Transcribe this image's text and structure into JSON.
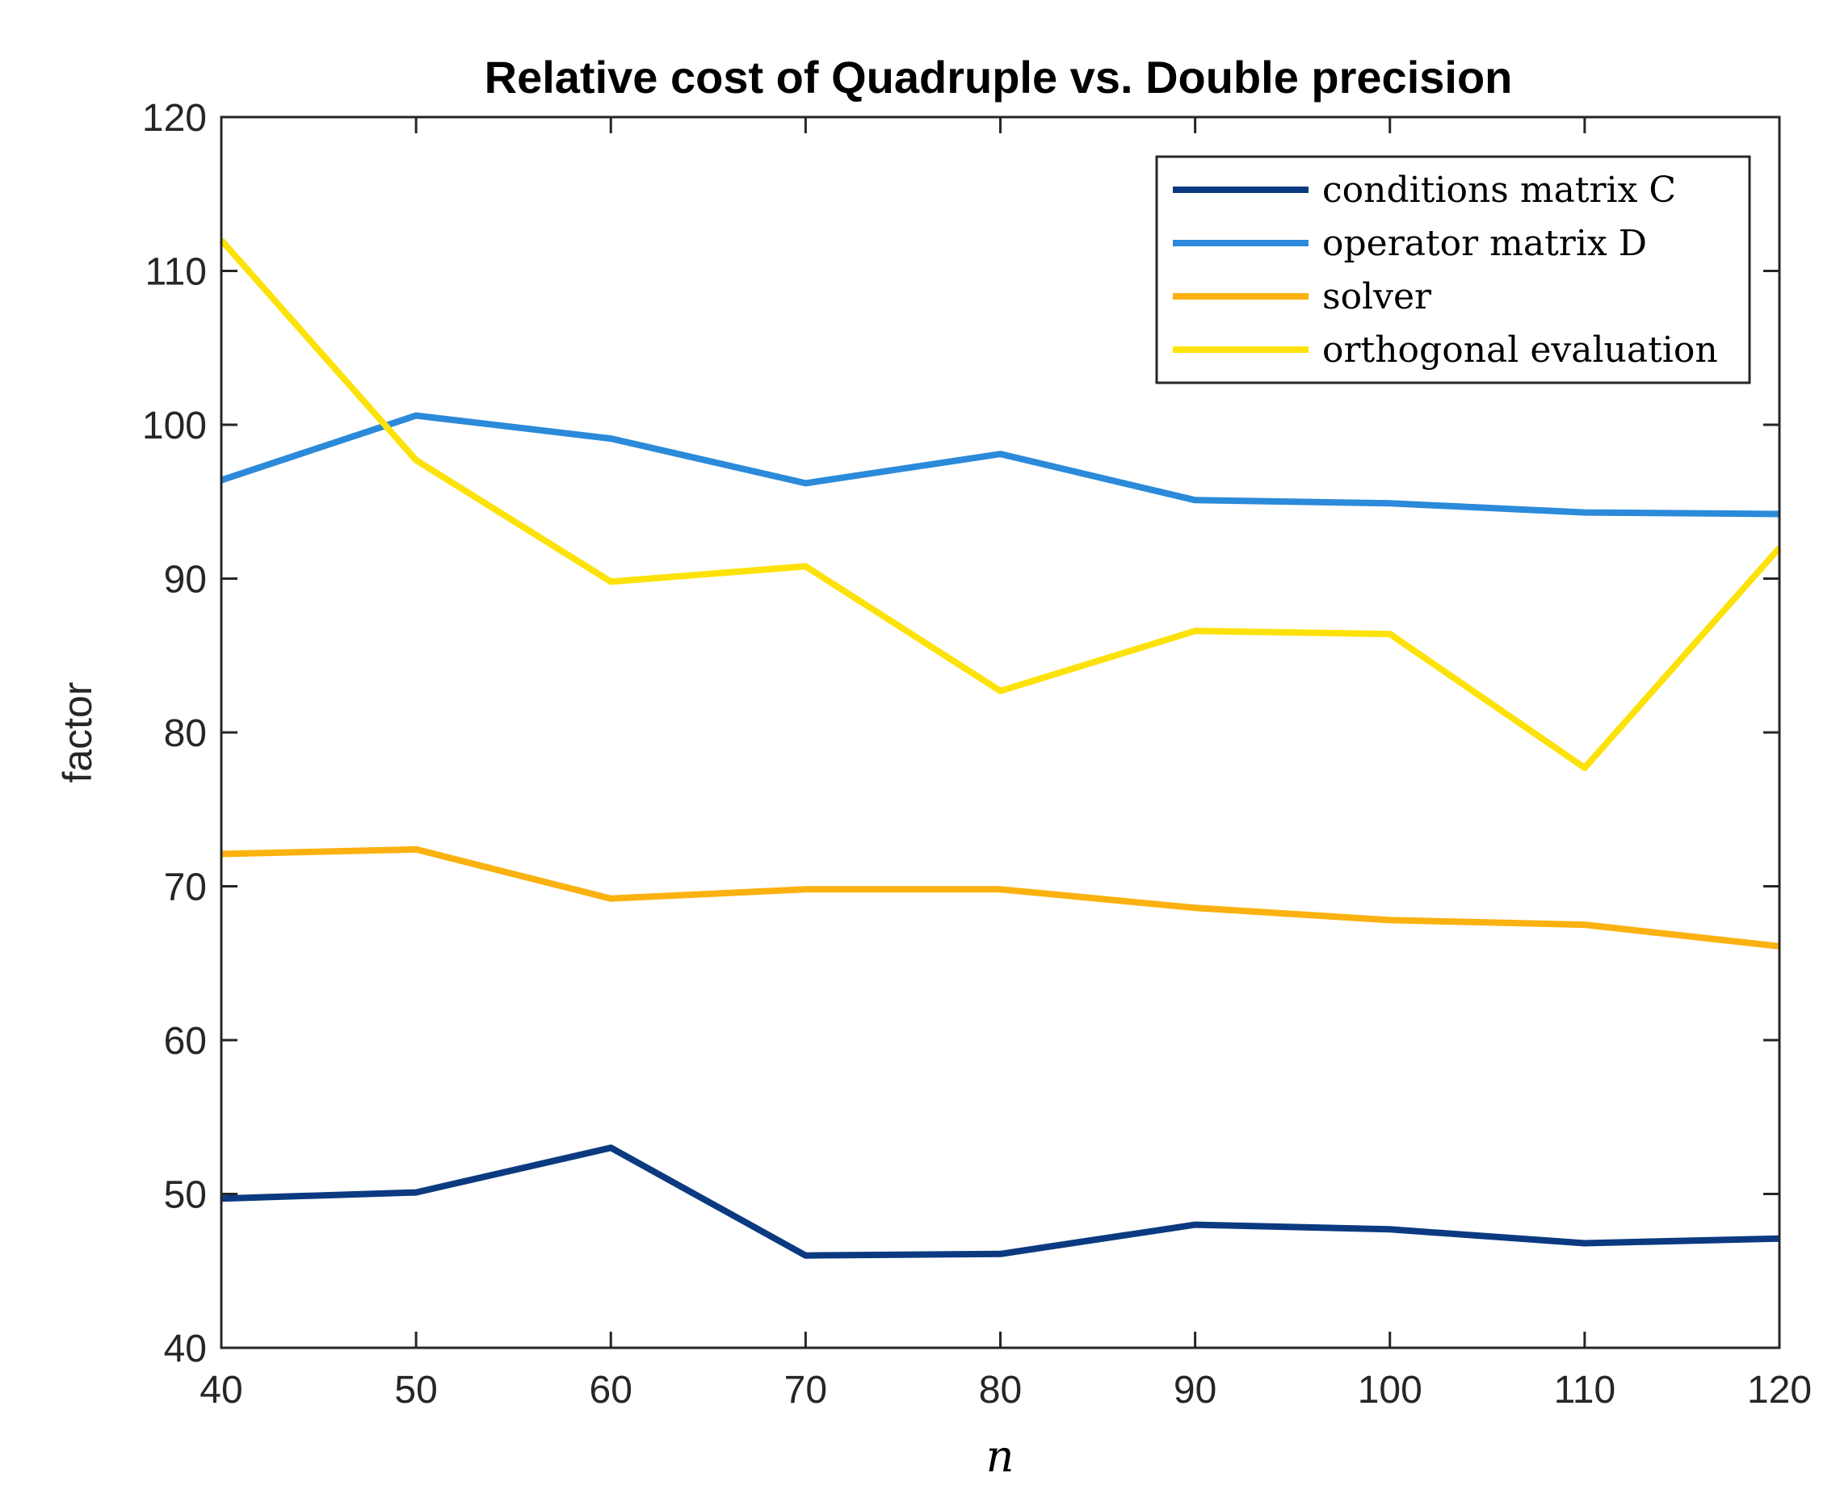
{
  "chart_data": {
    "type": "line",
    "title": "Relative cost of Quadruple vs. Double precision",
    "xlabel": "n",
    "ylabel": "factor",
    "xlim": [
      40,
      120
    ],
    "ylim": [
      40,
      120
    ],
    "x": [
      40,
      50,
      60,
      70,
      80,
      90,
      100,
      110,
      120
    ],
    "xticks": [
      40,
      50,
      60,
      70,
      80,
      90,
      100,
      110,
      120
    ],
    "yticks": [
      40,
      50,
      60,
      70,
      80,
      90,
      100,
      110,
      120
    ],
    "grid": false,
    "legend_location": "top-right",
    "series": [
      {
        "name": "conditions matrix C",
        "color": "#0b3a80",
        "values": [
          49.7,
          50.1,
          53.0,
          46.0,
          46.1,
          48.0,
          47.7,
          46.8,
          47.1
        ]
      },
      {
        "name": "operator matrix D",
        "color": "#2b8ad9",
        "values": [
          96.4,
          100.6,
          99.1,
          96.2,
          98.1,
          95.1,
          94.9,
          94.3,
          94.2
        ]
      },
      {
        "name": "solver",
        "color": "#fbb10f",
        "values": [
          72.1,
          72.4,
          69.2,
          69.8,
          69.8,
          68.6,
          67.8,
          67.5,
          66.1
        ]
      },
      {
        "name": "orthogonal evaluation",
        "color": "#fde20a",
        "values": [
          112.0,
          97.7,
          89.8,
          90.8,
          82.7,
          86.6,
          86.4,
          77.7,
          92.0
        ]
      }
    ]
  }
}
